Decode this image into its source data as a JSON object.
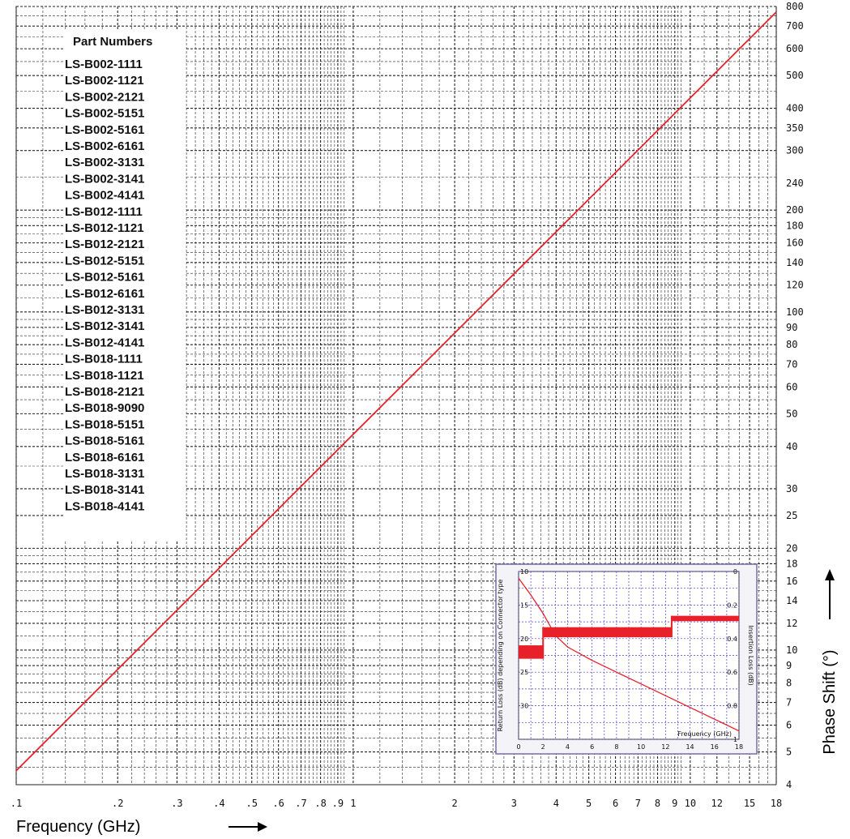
{
  "chart_data": {
    "type": "line",
    "xlabel": "Frequency (GHz)",
    "ylabel": "Phase Shift (°)",
    "x_scale": "log",
    "y_scale": "log",
    "xlim": [
      0.1,
      18
    ],
    "ylim": [
      4,
      800
    ],
    "grid": true,
    "x_ticks": [
      ".1",
      ".2",
      ".3",
      ".4",
      ".5",
      ".6",
      ".7",
      ".8",
      ".9",
      "1",
      "2",
      "3",
      "4",
      "5",
      "6",
      "7",
      "8",
      "9",
      "10",
      "12",
      "15",
      "18"
    ],
    "x_tick_values": [
      0.1,
      0.2,
      0.3,
      0.4,
      0.5,
      0.6,
      0.7,
      0.8,
      0.9,
      1,
      2,
      3,
      4,
      5,
      6,
      7,
      8,
      9,
      10,
      12,
      15,
      18
    ],
    "y_ticks": [
      "4",
      "5",
      "6",
      "7",
      "8",
      "9",
      "10",
      "12",
      "14",
      "16",
      "18",
      "20",
      "25",
      "30",
      "40",
      "50",
      "60",
      "70",
      "80",
      "90",
      "100",
      "120",
      "140",
      "160",
      "180",
      "200",
      "240",
      "300",
      "350",
      "400",
      "500",
      "600",
      "700",
      "800"
    ],
    "y_tick_values": [
      4,
      5,
      6,
      7,
      8,
      9,
      10,
      12,
      14,
      16,
      18,
      20,
      25,
      30,
      40,
      50,
      60,
      70,
      80,
      90,
      100,
      120,
      140,
      160,
      180,
      200,
      240,
      300,
      350,
      400,
      500,
      600,
      700,
      800
    ],
    "series": [
      {
        "x": [
          0.1,
          18
        ],
        "y": [
          4.4,
          770
        ],
        "color": "#e8202a"
      }
    ],
    "legend": {
      "title": "Part Numbers",
      "items": [
        "LS-B002-1111",
        "LS-B002-1121",
        "LS-B002-2121",
        "LS-B002-5151",
        "LS-B002-5161",
        "LS-B002-6161",
        "LS-B002-3131",
        "LS-B002-3141",
        "LS-B002-4141",
        "LS-B012-1111",
        "LS-B012-1121",
        "LS-B012-2121",
        "LS-B012-5151",
        "LS-B012-5161",
        "LS-B012-6161",
        "LS-B012-3131",
        "LS-B012-3141",
        "LS-B012-4141",
        "LS-B018-1111",
        "LS-B018-1121",
        "LS-B018-2121",
        "LS-B018-9090",
        "LS-B018-5151",
        "LS-B018-5161",
        "LS-B018-6161",
        "LS-B018-3131",
        "LS-B018-3141",
        "LS-B018-4141"
      ]
    },
    "inset": {
      "type": "line",
      "xlabel": "Frequency (GHz)",
      "ylabel_left": "Return Loss (dB) depending on Connector type",
      "ylabel_right": "Insertion Loss (dB)",
      "x_ticks": [
        "0",
        "2",
        "4",
        "6",
        "8",
        "10",
        "12",
        "14",
        "16",
        "18"
      ],
      "xlim": [
        0,
        18
      ],
      "y_left_ticks": [
        "10",
        "15",
        "20",
        "25",
        "30"
      ],
      "y_left_lim": [
        10,
        35
      ],
      "y_right_ticks": [
        "0",
        "0.2",
        "0.4",
        "0.6",
        "0.8",
        "1"
      ],
      "y_right_lim": [
        0,
        1
      ],
      "insertion_loss": {
        "x": [
          0,
          1,
          2,
          3,
          4,
          6,
          8,
          10,
          12,
          14,
          16,
          18
        ],
        "y": [
          0.04,
          0.14,
          0.25,
          0.38,
          0.45,
          0.53,
          0.6,
          0.67,
          0.74,
          0.81,
          0.88,
          0.95
        ]
      },
      "return_loss_bands": [
        {
          "x": [
            0,
            2
          ],
          "y": [
            21,
            23
          ]
        },
        {
          "x": [
            2,
            12.5
          ],
          "y": [
            18.3,
            19.8
          ]
        },
        {
          "x": [
            12.5,
            18
          ],
          "y": [
            16.6,
            17.4
          ]
        }
      ]
    }
  }
}
